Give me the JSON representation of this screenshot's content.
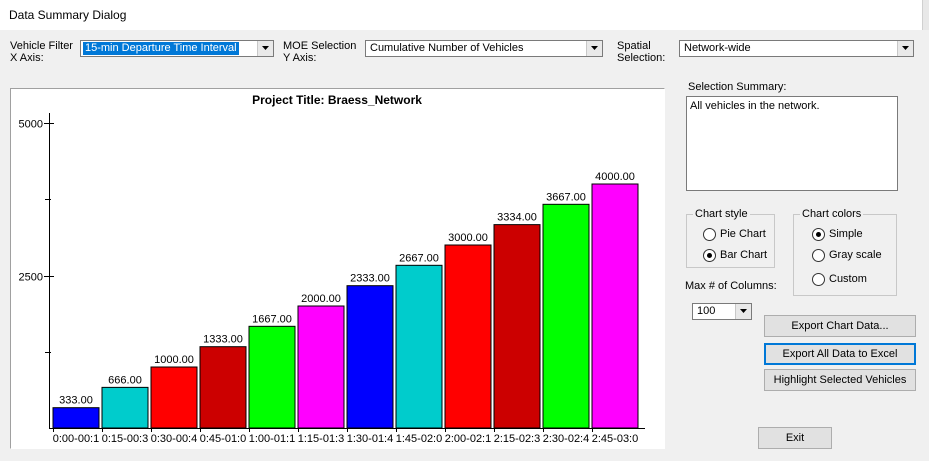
{
  "window": {
    "title": "Data Summary Dialog"
  },
  "filters": {
    "vehicle_filter_label": "Vehicle Filter",
    "x_axis_label": "X Axis:",
    "vehicle_filter_value": "15-min Departure Time Interval",
    "moe_label": "MOE Selection",
    "y_axis_label": "Y Axis:",
    "moe_value": "Cumulative Number of Vehicles",
    "spatial_label": "Spatial",
    "spatial_label2": "Selection:",
    "spatial_value": "Network-wide"
  },
  "summary": {
    "label": "Selection Summary:",
    "text": "All vehicles in the network."
  },
  "chart_style": {
    "title": "Chart style",
    "options": [
      "Pie Chart",
      "Bar Chart"
    ],
    "selected": "Bar Chart"
  },
  "chart_colors": {
    "title": "Chart colors",
    "options": [
      "Simple",
      "Gray scale",
      "Custom"
    ],
    "selected": "Simple"
  },
  "max_columns": {
    "label": "Max # of Columns:",
    "value": "100"
  },
  "buttons": {
    "export_chart": "Export Chart Data...",
    "export_all": "Export All Data to Excel",
    "highlight": "Highlight Selected Vehicles",
    "exit": "Exit"
  },
  "icons": {
    "dropdown": "chevron-down-icon"
  },
  "chart_data": {
    "type": "bar",
    "title": "Project Title: Braess_Network",
    "xlabel": "",
    "ylabel": "",
    "categories": [
      "0:00-00:1",
      "0:15-00:3",
      "0:30-00:4",
      "0:45-01:0",
      "1:00-01:1",
      "1:15-01:3",
      "1:30-01:4",
      "1:45-02:0",
      "2:00-02:1",
      "2:15-02:3",
      "2:30-02:4",
      "2:45-03:0"
    ],
    "values": [
      333,
      666,
      1000,
      1333,
      1667,
      2000,
      2333,
      2667,
      3000,
      3334,
      3667,
      4000
    ],
    "labels": [
      "333.00",
      "666.00",
      "1000.00",
      "1333.00",
      "1667.00",
      "2000.00",
      "2333.00",
      "2667.00",
      "3000.00",
      "3334.00",
      "3667.00",
      "4000.00"
    ],
    "colors": [
      "#0000ff",
      "#00cccc",
      "#ff0000",
      "#cc0000",
      "#00ff00",
      "#ff00ff",
      "#0000ff",
      "#00cccc",
      "#ff0000",
      "#cc0000",
      "#00ff00",
      "#ff00ff"
    ],
    "yticks": [
      2500,
      5000
    ],
    "ylim": [
      0,
      5000
    ],
    "grid": false,
    "legend": "none"
  }
}
